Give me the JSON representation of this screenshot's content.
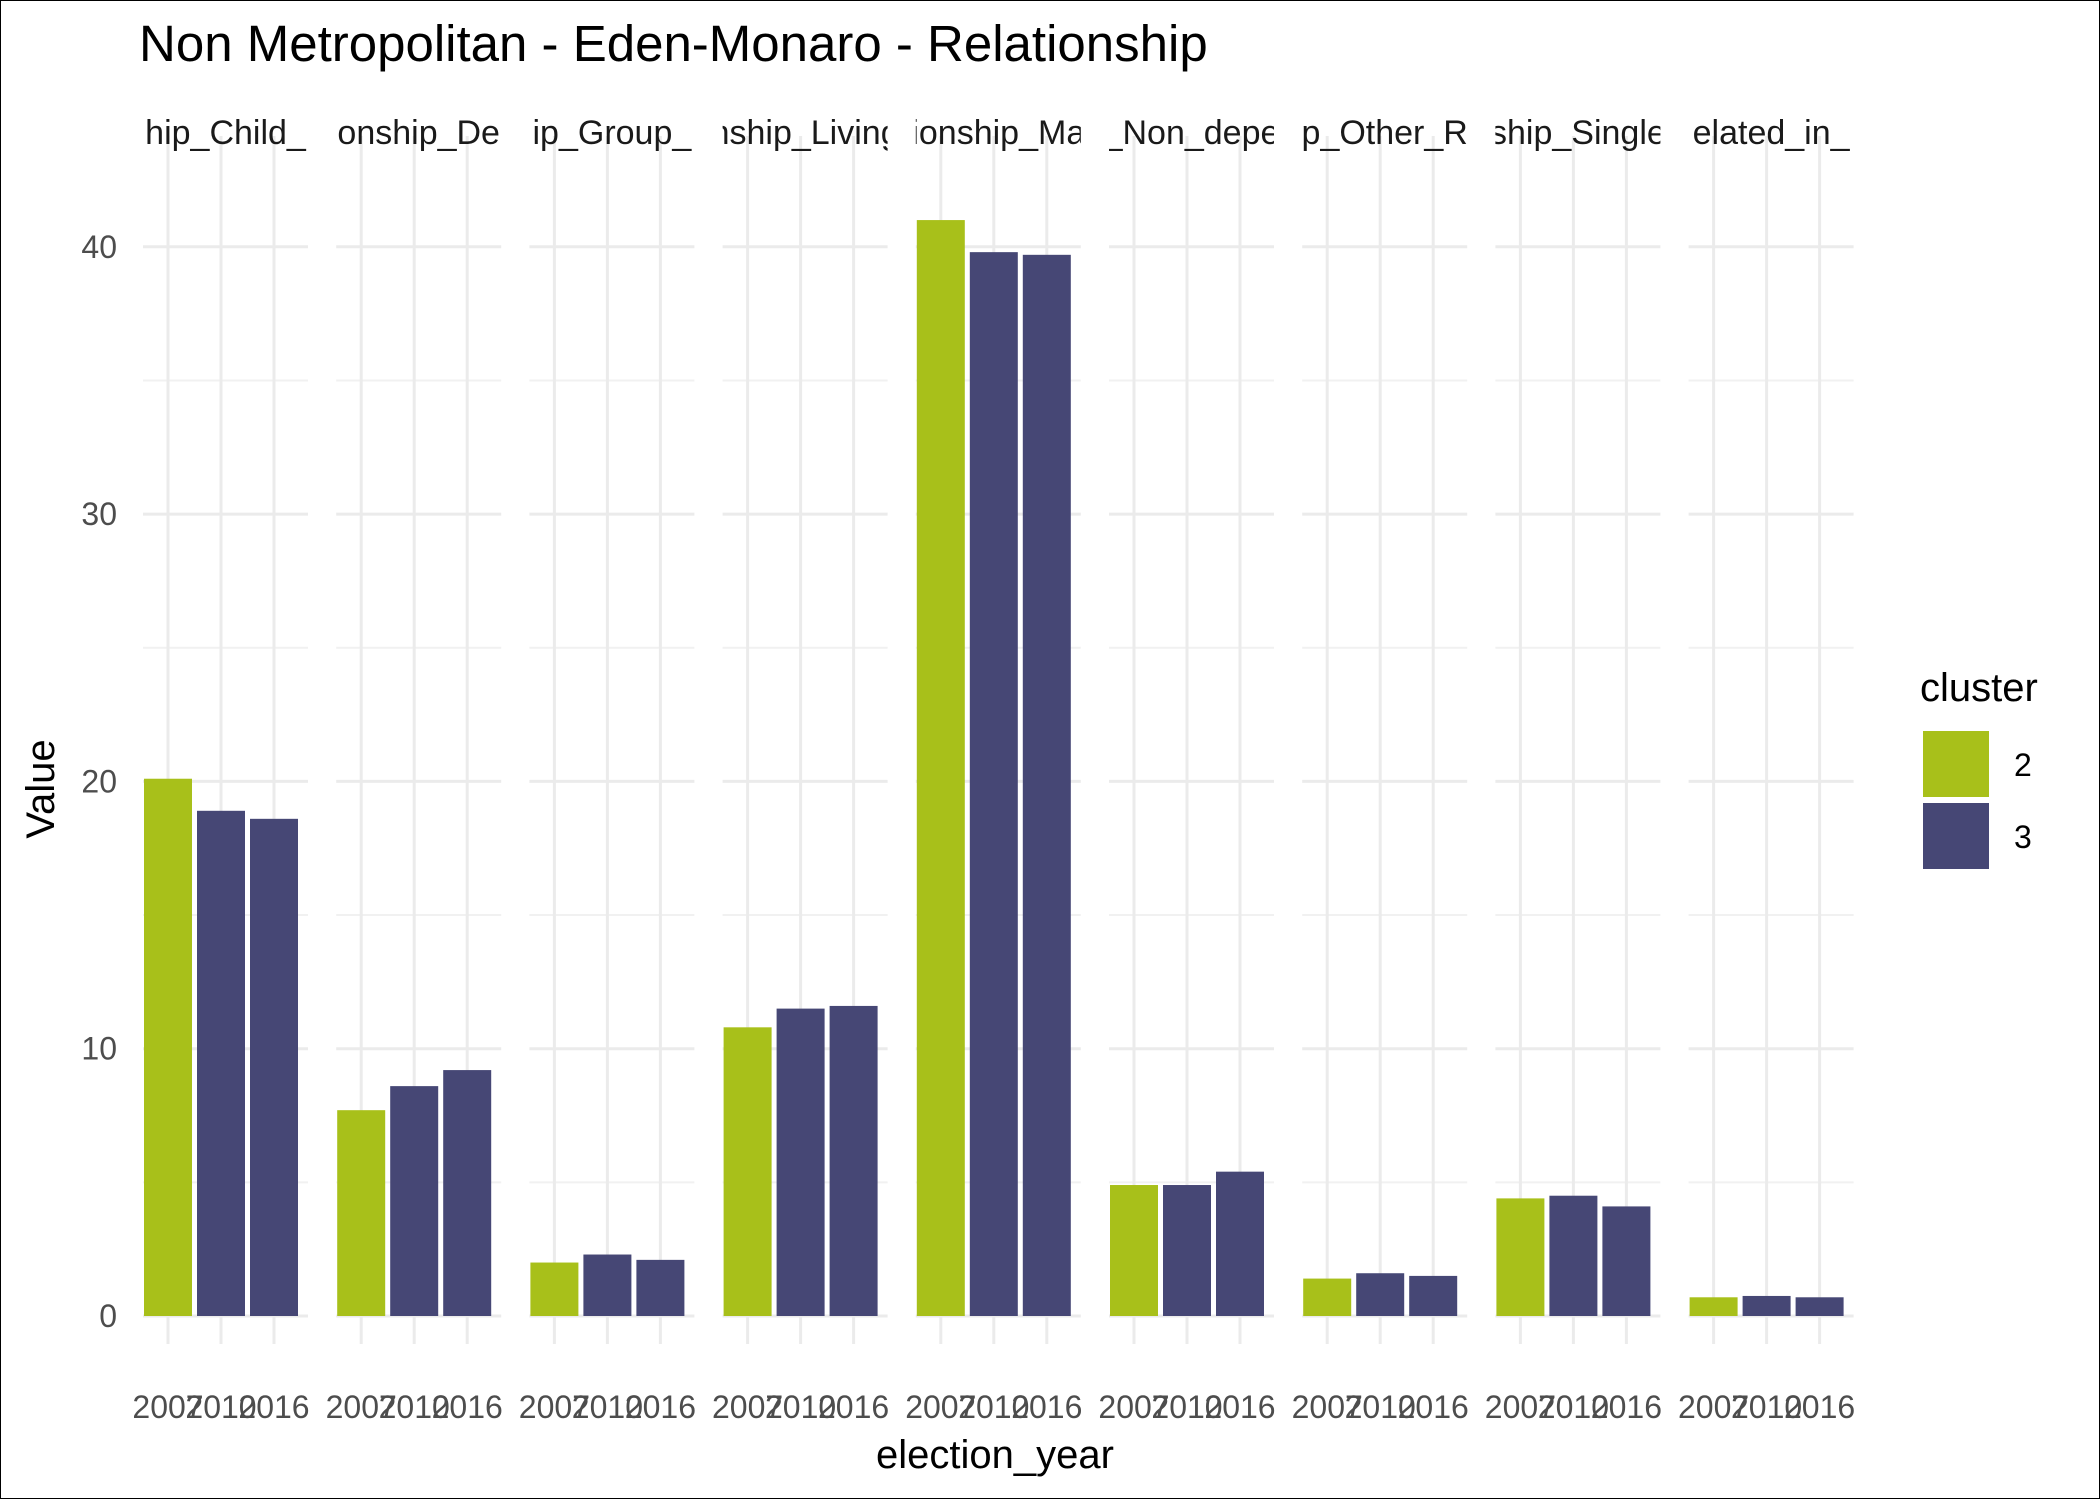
{
  "chart_data": {
    "type": "bar",
    "title": "Non Metropolitan - Eden-Monaro - Relationship",
    "xlabel": "election_year",
    "ylabel": "Value",
    "ylim": [
      0,
      42
    ],
    "yticks": [
      0,
      10,
      20,
      30,
      40
    ],
    "grid": true,
    "legend": {
      "title": "cluster",
      "position": "right",
      "entries": [
        {
          "label": "2",
          "color": "#A8C01A"
        },
        {
          "label": "3",
          "color": "#464775"
        }
      ]
    },
    "colors": {
      "2": "#A8C01A",
      "3": "#464775"
    },
    "facets": [
      {
        "label": "hip_Child_",
        "bars": [
          {
            "year": "2007",
            "cluster": "2",
            "value": 20.1
          },
          {
            "year": "2010",
            "cluster": "3",
            "value": 18.9
          },
          {
            "year": "2016",
            "cluster": "3",
            "value": 18.6
          }
        ]
      },
      {
        "label": "onship_De",
        "bars": [
          {
            "year": "2007",
            "cluster": "2",
            "value": 7.7
          },
          {
            "year": "2010",
            "cluster": "3",
            "value": 8.6
          },
          {
            "year": "2016",
            "cluster": "3",
            "value": 9.2
          }
        ]
      },
      {
        "label": "ip_Group_",
        "bars": [
          {
            "year": "2007",
            "cluster": "2",
            "value": 2.0
          },
          {
            "year": "2010",
            "cluster": "3",
            "value": 2.3
          },
          {
            "year": "2016",
            "cluster": "3",
            "value": 2.1
          }
        ]
      },
      {
        "label": "nship_Living",
        "bars": [
          {
            "year": "2007",
            "cluster": "2",
            "value": 10.8
          },
          {
            "year": "2010",
            "cluster": "3",
            "value": 11.5
          },
          {
            "year": "2016",
            "cluster": "3",
            "value": 11.6
          }
        ]
      },
      {
        "label": "ionship_Ma",
        "bars": [
          {
            "year": "2007",
            "cluster": "2",
            "value": 41.0
          },
          {
            "year": "2010",
            "cluster": "3",
            "value": 39.8
          },
          {
            "year": "2016",
            "cluster": "3",
            "value": 39.7
          }
        ]
      },
      {
        "label": "_Non_depe",
        "bars": [
          {
            "year": "2007",
            "cluster": "2",
            "value": 4.9
          },
          {
            "year": "2010",
            "cluster": "3",
            "value": 4.9
          },
          {
            "year": "2016",
            "cluster": "3",
            "value": 5.4
          }
        ]
      },
      {
        "label": "p_Other_R",
        "bars": [
          {
            "year": "2007",
            "cluster": "2",
            "value": 1.4
          },
          {
            "year": "2010",
            "cluster": "3",
            "value": 1.6
          },
          {
            "year": "2016",
            "cluster": "3",
            "value": 1.5
          }
        ]
      },
      {
        "label": "ship_Single",
        "bars": [
          {
            "year": "2007",
            "cluster": "2",
            "value": 4.4
          },
          {
            "year": "2010",
            "cluster": "3",
            "value": 4.5
          },
          {
            "year": "2016",
            "cluster": "3",
            "value": 4.1
          }
        ]
      },
      {
        "label": "elated_in_",
        "bars": [
          {
            "year": "2007",
            "cluster": "2",
            "value": 0.7
          },
          {
            "year": "2010",
            "cluster": "3",
            "value": 0.75
          },
          {
            "year": "2016",
            "cluster": "3",
            "value": 0.7
          }
        ]
      }
    ]
  }
}
